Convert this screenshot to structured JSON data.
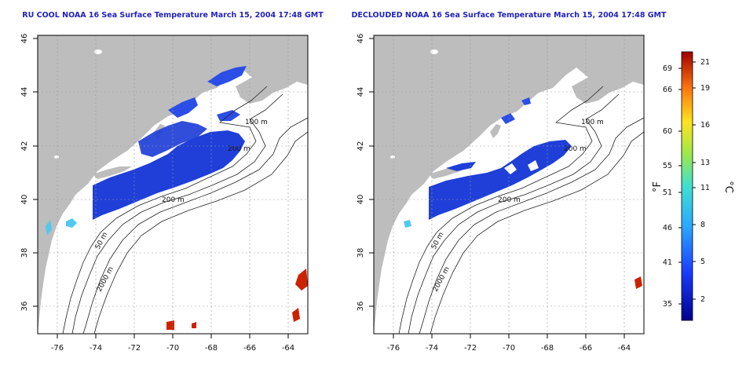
{
  "panels": [
    {
      "id": "rucool",
      "title": "RU COOL NOAA 16 Sea Surface Temperature March 15, 2004 17:48 GMT",
      "contour_labels": [
        "100 m",
        "200 m",
        "200 m",
        "50 m",
        "2000 m"
      ]
    },
    {
      "id": "declouded",
      "title": "DECLOUDED NOAA 16 Sea Surface Temperature March 15, 2004 17:48 GMT",
      "contour_labels": [
        "100 m",
        "200 m",
        "200 m",
        "50 m",
        "2000 m"
      ]
    }
  ],
  "axes": {
    "x_ticks": [
      "-76",
      "-74",
      "-72",
      "-70",
      "-68",
      "-66",
      "-64"
    ],
    "y_ticks": [
      "36",
      "38",
      "40",
      "42",
      "44",
      "46"
    ]
  },
  "colorbar": {
    "unit_f": "°F",
    "unit_c": "°C",
    "f_ticks": [
      "69",
      "66",
      "60",
      "55",
      "51",
      "46",
      "41",
      "35"
    ],
    "c_ticks": [
      "21",
      "19",
      "16",
      "13",
      "11",
      "8",
      "5",
      "2"
    ]
  },
  "colors": {
    "land": "#bdbdbd",
    "ocean": "#ffffff",
    "sst_cold": "#1f3fd8",
    "sst_warm": "#cc2200",
    "title": "#2222bb"
  }
}
